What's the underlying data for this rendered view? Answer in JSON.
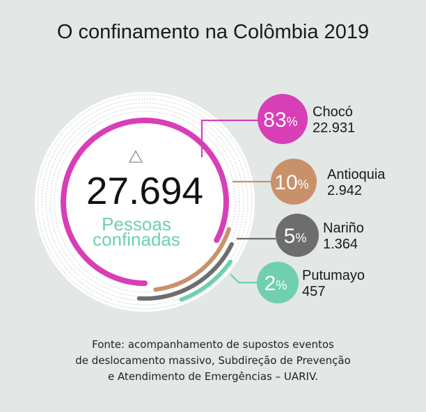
{
  "title": "O confinamento na Colômbia 2019",
  "center": {
    "total": "27.694",
    "label_line1": "Pessoas",
    "label_line2": "confinadas"
  },
  "chart_data": {
    "type": "radial-bar",
    "title": "O confinamento na Colômbia 2019",
    "total": 27694,
    "unit": "Pessoas confinadas",
    "categories": [
      "Chocó",
      "Antioquia",
      "Nariño",
      "Putumayo"
    ],
    "values": [
      22931,
      2942,
      1364,
      457
    ],
    "percents": [
      83,
      10,
      5,
      2
    ],
    "value_labels": [
      "22.931",
      "2.942",
      "1.364",
      "457"
    ],
    "percent_labels": [
      "83",
      "10",
      "5",
      "2"
    ],
    "colors": [
      "#d83fb6",
      "#c9916a",
      "#6d6d6d",
      "#6fcfb0"
    ]
  },
  "percent_symbol": "%",
  "source_lines": [
    "Fonte: acompanhamento de supostos eventos",
    "de deslocamento massivo, Subdireção de Prevenção",
    "e Atendimento de Emergências – UARIV."
  ]
}
